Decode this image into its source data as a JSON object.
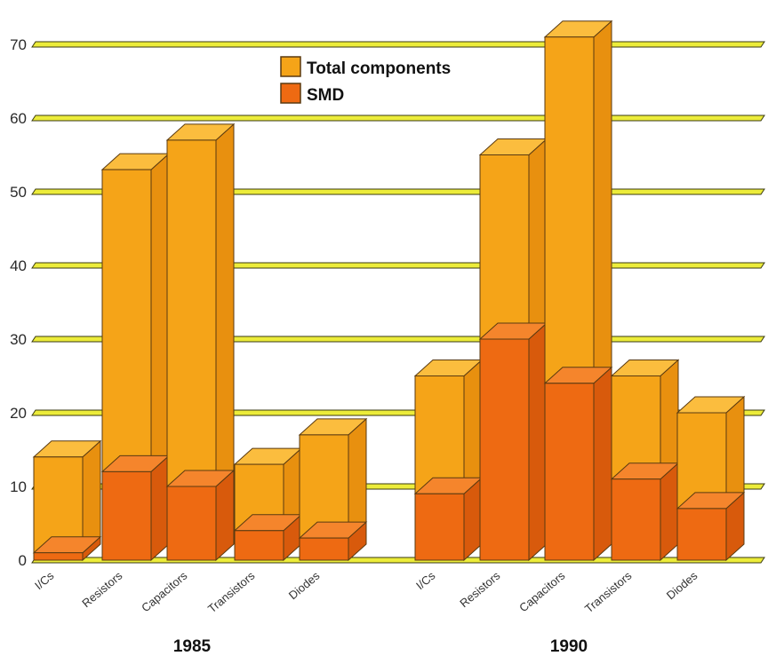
{
  "chart_data": {
    "type": "bar",
    "ylim": [
      0,
      70
    ],
    "yticks": [
      "0",
      "10",
      "20",
      "30",
      "40",
      "50",
      "60",
      "70"
    ],
    "grid": true,
    "legend_position": "top-center",
    "groups": [
      {
        "label": "1985",
        "categories": [
          "I/Cs",
          "Resistors",
          "Capacitors",
          "Transistors",
          "Diodes"
        ],
        "series": [
          {
            "name": "Total components",
            "values": [
              14,
              53,
              57,
              13,
              17
            ]
          },
          {
            "name": "SMD",
            "values": [
              1,
              12,
              10,
              4,
              3
            ]
          }
        ]
      },
      {
        "label": "1990",
        "categories": [
          "I/Cs",
          "Resistors",
          "Capacitors",
          "Transistors",
          "Diodes"
        ],
        "series": [
          {
            "name": "Total components",
            "values": [
              25,
              55,
              71,
              25,
              20
            ]
          },
          {
            "name": "SMD",
            "values": [
              9,
              30,
              24,
              11,
              7
            ]
          }
        ]
      }
    ],
    "colors": {
      "total_front": "#f5a418",
      "total_side": "#e8900f",
      "total_top": "#fbbd3e",
      "smd_front": "#ee6a12",
      "smd_side": "#d85a0c",
      "smd_top": "#f5852c",
      "gridline": "#ecec3a",
      "outline": "#5a3a10"
    }
  }
}
